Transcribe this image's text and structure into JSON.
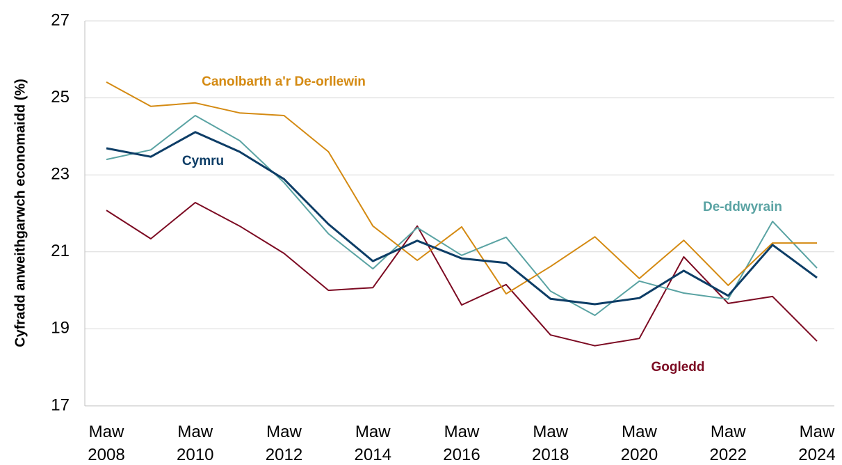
{
  "chart_data": {
    "type": "line",
    "y_label": "Cyfradd anweithgarwch economaidd (%)",
    "categories": [
      "Maw 2008",
      null,
      "Maw 2010",
      null,
      "Maw 2012",
      null,
      "Maw 2014",
      null,
      "Maw 2016",
      null,
      "Maw 2018",
      null,
      "Maw 2020",
      null,
      "Maw 2022",
      null,
      "Maw 2024"
    ],
    "series": [
      {
        "name": "Canolbarth a'r De-orllewin",
        "color": "#d48a12",
        "values": [
          25.41,
          24.78,
          24.87,
          24.61,
          24.54,
          23.6,
          21.67,
          20.78,
          21.65,
          19.91,
          20.62,
          21.39,
          20.31,
          21.3,
          20.13,
          21.23,
          21.23
        ]
      },
      {
        "name": "Cymru",
        "color": "#0d3d66",
        "values": [
          23.69,
          23.47,
          24.11,
          23.6,
          22.89,
          21.72,
          20.76,
          21.29,
          20.83,
          20.71,
          19.78,
          19.64,
          19.8,
          20.51,
          19.86,
          21.18,
          20.33
        ]
      },
      {
        "name": "De-ddwyrain",
        "color": "#5aa3a3",
        "values": [
          23.4,
          23.65,
          24.54,
          23.89,
          22.8,
          21.47,
          20.56,
          21.63,
          20.91,
          21.38,
          19.98,
          19.35,
          20.24,
          19.93,
          19.77,
          21.79,
          20.58
        ]
      },
      {
        "name": "Gogledd",
        "color": "#7c0a22",
        "values": [
          22.08,
          21.34,
          22.28,
          21.67,
          20.96,
          20.0,
          20.07,
          21.67,
          19.62,
          20.15,
          18.84,
          18.56,
          18.75,
          20.87,
          19.66,
          19.84,
          18.68
        ]
      }
    ],
    "ylim": [
      17,
      27
    ],
    "yticks": [
      17,
      19,
      21,
      23,
      25,
      27
    ],
    "grid": true
  }
}
